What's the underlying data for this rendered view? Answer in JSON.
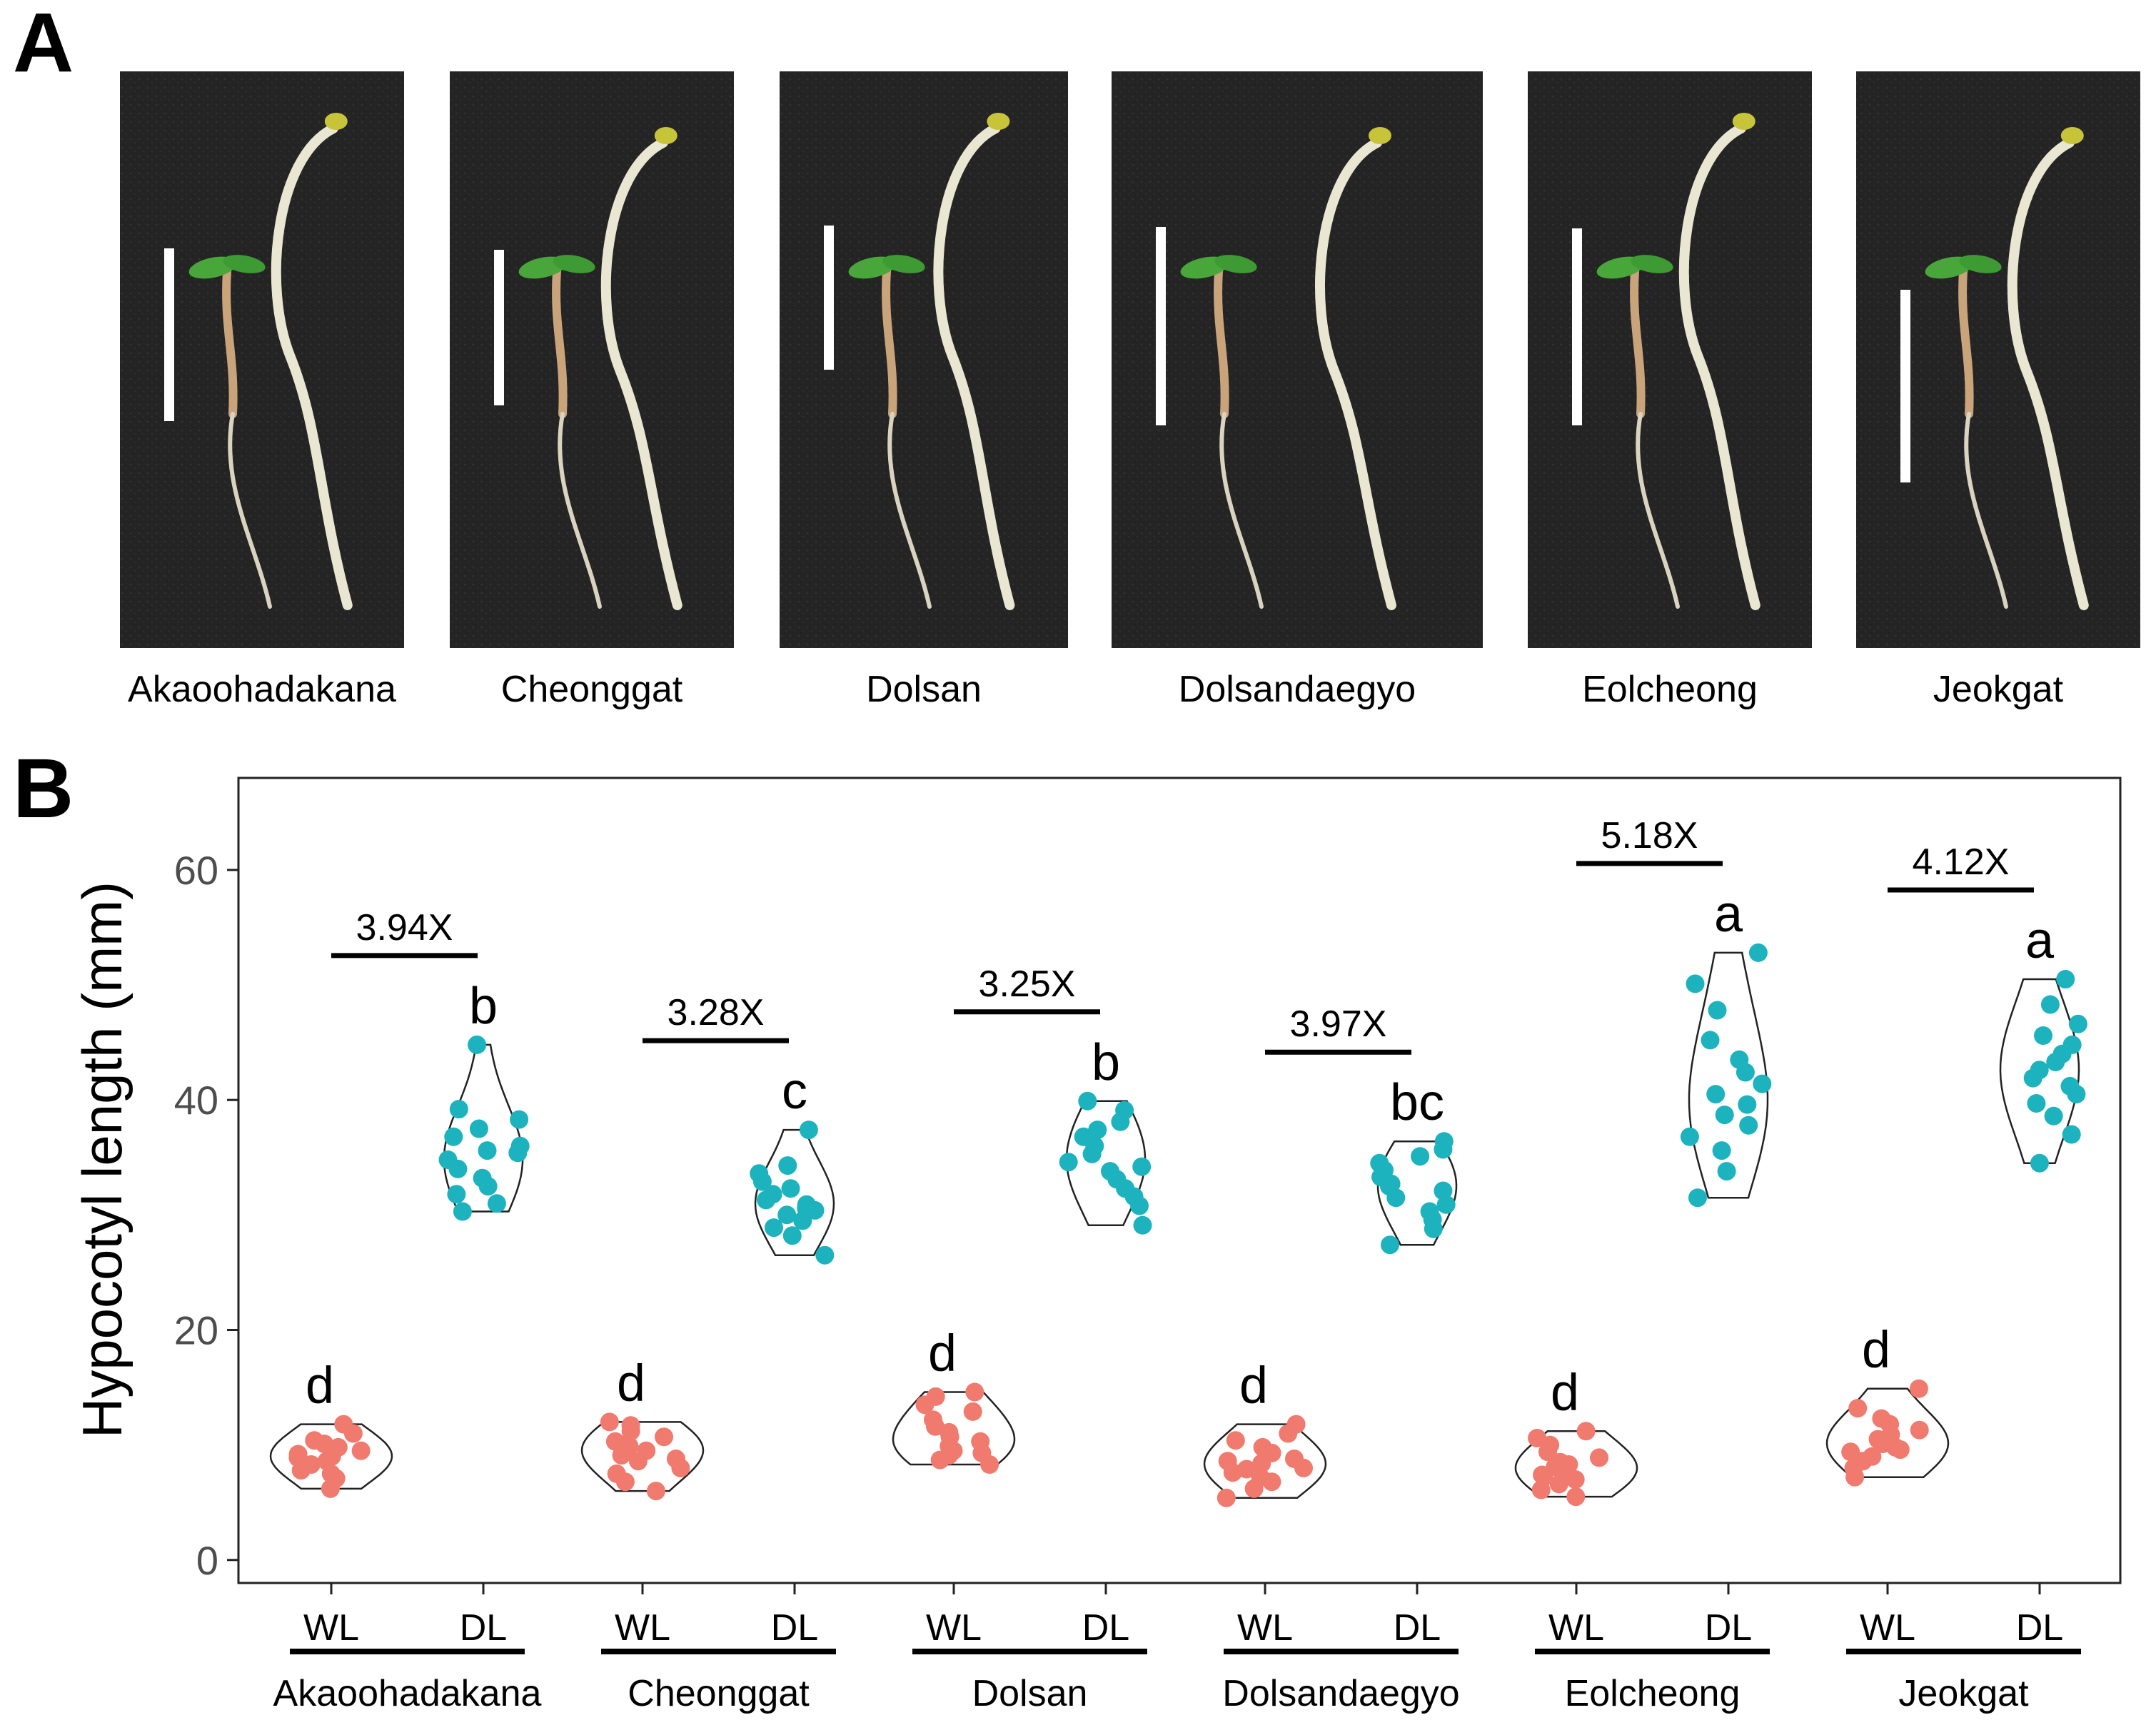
{
  "figure": {
    "panel_a_label": "A",
    "panel_b_label": "B"
  },
  "photos": [
    {
      "label": "Akaoohadakana"
    },
    {
      "label": "Cheonggat"
    },
    {
      "label": "Dolsan"
    },
    {
      "label": "Dolsandaegyo"
    },
    {
      "label": "Eolcheong"
    },
    {
      "label": "Jeokgat"
    }
  ],
  "colors": {
    "WL": "#F07A6E",
    "DL": "#1CB3BE",
    "photo_background": "#252525",
    "hypocotyl": "#e9e6d2",
    "cotyledon": "#49a63a",
    "scale_bar": "#ffffff"
  },
  "chart_data": {
    "type": "scatter",
    "subtype": "violin-jitter",
    "ylabel": "Hypocotyl length (mm)",
    "xlabel": "",
    "ylim": [
      -2,
      68
    ],
    "yticks": [
      0,
      20,
      40,
      60
    ],
    "grid": false,
    "conditions": [
      "WL",
      "DL"
    ],
    "groups": [
      {
        "cultivar": "Akaoohadakana",
        "fold_change": "3.94X",
        "WL": {
          "letter": "d",
          "values": [
            6.2,
            7.1,
            7.8,
            8.3,
            8.6,
            9.0,
            9.2,
            9.5,
            9.8,
            10.1,
            10.4,
            11.0,
            11.8,
            8.9,
            7.5
          ]
        },
        "DL": {
          "letter": "b",
          "values": [
            30.3,
            31.0,
            31.8,
            32.5,
            33.2,
            34.0,
            34.8,
            35.4,
            36.0,
            36.8,
            37.5,
            38.3,
            39.2,
            44.8,
            35.6
          ]
        }
      },
      {
        "cultivar": "Cheonggat",
        "fold_change": "3.28X",
        "WL": {
          "letter": "d",
          "values": [
            6.0,
            6.8,
            7.5,
            8.0,
            8.6,
            9.1,
            9.5,
            9.9,
            10.3,
            10.7,
            11.2,
            11.7,
            12.0,
            8.8,
            10.0
          ]
        },
        "DL": {
          "letter": "c",
          "values": [
            26.5,
            28.2,
            28.9,
            29.5,
            30.0,
            30.4,
            30.9,
            31.3,
            31.8,
            32.3,
            32.9,
            33.6,
            34.3,
            37.4,
            30.6
          ]
        }
      },
      {
        "cultivar": "Dolsan",
        "fold_change": "3.25X",
        "WL": {
          "letter": "d",
          "values": [
            8.3,
            8.7,
            9.1,
            9.5,
            9.9,
            10.3,
            10.7,
            11.1,
            11.6,
            12.2,
            12.9,
            13.5,
            14.2,
            14.6,
            9.3
          ]
        },
        "DL": {
          "letter": "b",
          "values": [
            29.1,
            30.8,
            31.6,
            32.3,
            33.1,
            33.8,
            34.6,
            35.3,
            36.0,
            36.8,
            37.4,
            38.1,
            39.1,
            39.9,
            34.2
          ]
        }
      },
      {
        "cultivar": "Dolsandaegyo",
        "fold_change": "3.97X",
        "WL": {
          "letter": "d",
          "values": [
            5.4,
            6.2,
            6.8,
            7.2,
            7.6,
            8.0,
            8.4,
            8.8,
            9.3,
            9.8,
            10.4,
            11.0,
            11.8,
            7.9,
            8.6
          ]
        },
        "DL": {
          "letter": "bc",
          "values": [
            27.4,
            28.8,
            29.6,
            30.3,
            30.9,
            31.5,
            32.1,
            32.7,
            33.3,
            33.9,
            34.5,
            35.1,
            35.7,
            36.4,
            32.5
          ]
        }
      },
      {
        "cultivar": "Eolcheong",
        "fold_change": "5.18X",
        "WL": {
          "letter": "d",
          "values": [
            5.5,
            6.1,
            6.6,
            7.0,
            7.4,
            7.8,
            8.1,
            8.5,
            8.9,
            9.4,
            10.0,
            10.6,
            11.2,
            7.2,
            8.3
          ]
        },
        "DL": {
          "letter": "a",
          "values": [
            31.5,
            33.8,
            35.6,
            36.8,
            37.8,
            38.7,
            39.6,
            40.5,
            41.4,
            42.4,
            43.5,
            45.2,
            47.8,
            50.1,
            52.8
          ]
        }
      },
      {
        "cultivar": "Jeokgat",
        "fold_change": "4.12X",
        "WL": {
          "letter": "d",
          "values": [
            7.2,
            8.0,
            8.6,
            9.0,
            9.4,
            9.8,
            10.1,
            10.5,
            10.9,
            11.3,
            11.8,
            12.3,
            13.2,
            14.9,
            9.6
          ]
        },
        "DL": {
          "letter": "a",
          "values": [
            34.5,
            37.0,
            38.6,
            39.7,
            40.5,
            41.2,
            41.9,
            42.6,
            43.3,
            44.0,
            44.8,
            45.6,
            46.6,
            48.3,
            50.5
          ]
        }
      }
    ]
  }
}
